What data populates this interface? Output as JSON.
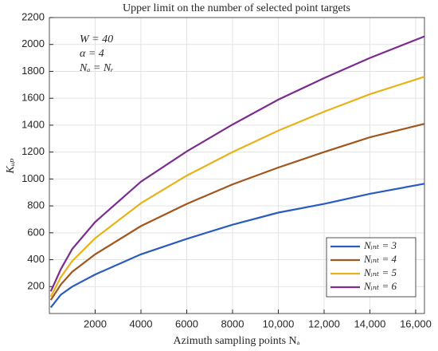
{
  "chart_data": {
    "type": "line",
    "title": "Upper limit on the number of selected point targets",
    "x_label": "Azimuth sampling points Nₐ",
    "y_label": "Kᵤₚ",
    "annotations": [
      "W = 40",
      "α = 4",
      "Nₐ = Nᵣ"
    ],
    "x": [
      64,
      500,
      1000,
      2000,
      4000,
      6000,
      8000,
      10000,
      12000,
      14000,
      16384
    ],
    "series": [
      {
        "name": "Nᵢₙₜ = 3",
        "color": "#2a5bbf",
        "values": [
          45,
          140,
          200,
          290,
          440,
          555,
          660,
          750,
          815,
          890,
          965
        ]
      },
      {
        "name": "Nᵢₙₜ = 4",
        "color": "#a0561c",
        "values": [
          100,
          215,
          310,
          440,
          650,
          815,
          960,
          1085,
          1200,
          1310,
          1410
        ]
      },
      {
        "name": "Nᵢₙₜ = 5",
        "color": "#e8b21a",
        "values": [
          125,
          270,
          390,
          560,
          820,
          1025,
          1200,
          1360,
          1500,
          1630,
          1760
        ]
      },
      {
        "name": "Nᵢₙₜ = 6",
        "color": "#7b2c8e",
        "values": [
          165,
          330,
          480,
          680,
          980,
          1205,
          1405,
          1590,
          1750,
          1900,
          2060
        ]
      }
    ],
    "xlim": [
      0,
      16384
    ],
    "xticks": [
      2000,
      4000,
      6000,
      8000,
      {
        "value": 10000,
        "label": "10,000"
      },
      {
        "value": 12000,
        "label": "12,000"
      },
      {
        "value": 14000,
        "label": "14,000"
      },
      {
        "value": 16000,
        "label": "16,000"
      }
    ],
    "ylim": [
      0,
      2200
    ],
    "yticks": [
      200,
      400,
      600,
      800,
      1000,
      1200,
      1400,
      1600,
      1800,
      2000,
      2200
    ],
    "grid": true,
    "legend": "lower right"
  }
}
